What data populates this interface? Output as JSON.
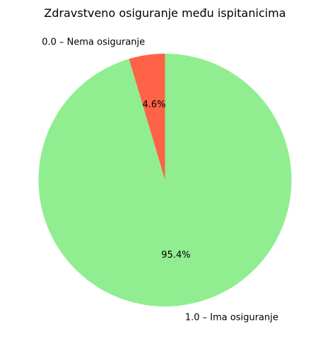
{
  "chart_data": {
    "type": "pie",
    "title": "Zdravstveno osiguranje među ispitanicima",
    "labels": [
      "0.0 – Nema osiguranje",
      "1.0 – Ima osiguranje"
    ],
    "values": [
      4.6,
      95.4
    ],
    "percent_labels": [
      "4.6%",
      "95.4%"
    ],
    "colors": [
      "#ff6347",
      "#90ee90"
    ],
    "start_angle_deg": 90,
    "direction": "counterclockwise",
    "legend": "none"
  }
}
